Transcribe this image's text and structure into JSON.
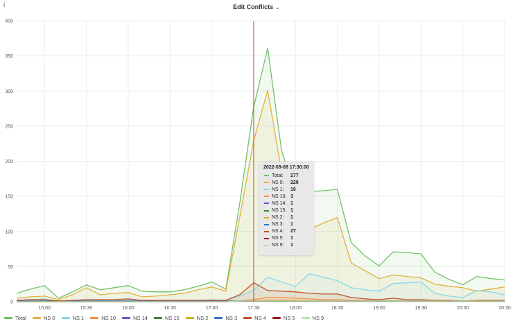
{
  "panel": {
    "title": "Edit Conflicts",
    "info_glyph": "i"
  },
  "chart_data": {
    "type": "line",
    "title": "Edit Conflicts",
    "xlabel": "",
    "ylabel": "",
    "ylim": [
      0,
      400
    ],
    "yticks": [
      "0",
      "50",
      "100",
      "150",
      "200",
      "250",
      "300",
      "350",
      "400"
    ],
    "xticks": [
      "15:00",
      "15:30",
      "16:00",
      "16:30",
      "17:00",
      "17:30",
      "18:00",
      "18:30",
      "19:00",
      "19:30",
      "20:00",
      "20:30"
    ],
    "x": [
      "14:40",
      "14:50",
      "15:00",
      "15:10",
      "15:20",
      "15:30",
      "15:40",
      "15:50",
      "16:00",
      "16:10",
      "16:20",
      "16:30",
      "16:40",
      "16:50",
      "17:00",
      "17:10",
      "17:20",
      "17:30",
      "17:40",
      "17:50",
      "18:00",
      "18:10",
      "18:20",
      "18:30",
      "18:40",
      "18:50",
      "19:00",
      "19:10",
      "19:20",
      "19:30",
      "19:40",
      "19:50",
      "20:00",
      "20:10",
      "20:20",
      "20:30"
    ],
    "grid": true,
    "legend_position": "bottom",
    "series": [
      {
        "name": "Total",
        "color": "#73bf69",
        "values": [
          12,
          18,
          23,
          5,
          14,
          24,
          17,
          20,
          23,
          15,
          14,
          14,
          17,
          22,
          28,
          18,
          140,
          277,
          361,
          215,
          155,
          157,
          158,
          160,
          84,
          65,
          51,
          71,
          70,
          68,
          42,
          32,
          24,
          36,
          33,
          31
        ]
      },
      {
        "name": "NS 0",
        "color": "#e0b23c",
        "values": [
          5,
          7,
          8,
          3,
          10,
          20,
          10,
          12,
          13,
          7,
          8,
          10,
          12,
          17,
          21,
          15,
          120,
          229,
          301,
          185,
          125,
          103,
          112,
          120,
          55,
          44,
          33,
          38,
          36,
          34,
          25,
          22,
          20,
          15,
          18,
          21
        ]
      },
      {
        "name": "NS 1",
        "color": "#8ad8e8",
        "values": [
          2,
          3,
          4,
          1,
          2,
          3,
          2,
          3,
          3,
          2,
          2,
          2,
          2,
          2,
          3,
          2,
          8,
          16,
          35,
          28,
          22,
          40,
          35,
          30,
          20,
          17,
          15,
          26,
          27,
          28,
          12,
          8,
          6,
          16,
          14,
          10
        ]
      },
      {
        "name": "NS 10",
        "color": "#ff8c45",
        "values": [
          0,
          0,
          0,
          0,
          0,
          0,
          0,
          0,
          0,
          0,
          0,
          0,
          0,
          0,
          0,
          0,
          1,
          3,
          6,
          6,
          5,
          4,
          3,
          3,
          2,
          2,
          1,
          1,
          1,
          1,
          1,
          1,
          1,
          1,
          1,
          1
        ]
      },
      {
        "name": "NS 14",
        "color": "#5b5fbf",
        "values": [
          0,
          0,
          0,
          0,
          0,
          0,
          0,
          0,
          0,
          0,
          0,
          0,
          0,
          0,
          0,
          0,
          1,
          1,
          1,
          1,
          1,
          1,
          1,
          1,
          1,
          1,
          1,
          1,
          1,
          1,
          1,
          1,
          1,
          1,
          1,
          1
        ]
      },
      {
        "name": "NS 15",
        "color": "#37872d",
        "values": [
          1,
          1,
          1,
          1,
          1,
          1,
          1,
          1,
          1,
          1,
          1,
          1,
          1,
          1,
          1,
          1,
          1,
          1,
          1,
          1,
          1,
          1,
          1,
          1,
          1,
          1,
          1,
          1,
          1,
          1,
          1,
          1,
          1,
          1,
          1,
          1
        ]
      },
      {
        "name": "NS 2",
        "color": "#d8ac2c",
        "values": [
          1,
          1,
          1,
          1,
          1,
          1,
          1,
          1,
          1,
          1,
          1,
          1,
          1,
          1,
          1,
          1,
          1,
          1,
          2,
          2,
          2,
          1,
          1,
          1,
          1,
          1,
          1,
          1,
          1,
          1,
          1,
          1,
          1,
          1,
          1,
          1
        ]
      },
      {
        "name": "NS 3",
        "color": "#3d71c4",
        "values": [
          1,
          1,
          1,
          1,
          1,
          1,
          1,
          1,
          1,
          1,
          1,
          1,
          1,
          1,
          1,
          1,
          1,
          1,
          1,
          1,
          1,
          1,
          1,
          1,
          1,
          1,
          1,
          1,
          1,
          1,
          1,
          1,
          1,
          1,
          1,
          1
        ]
      },
      {
        "name": "NS 4",
        "color": "#c4512a",
        "values": [
          2,
          3,
          3,
          1,
          2,
          3,
          3,
          3,
          4,
          2,
          2,
          2,
          2,
          2,
          2,
          2,
          10,
          27,
          16,
          15,
          14,
          12,
          11,
          11,
          6,
          4,
          3,
          5,
          3,
          3,
          2,
          2,
          1,
          2,
          2,
          2
        ]
      },
      {
        "name": "NS 5",
        "color": "#9e1b1b",
        "values": [
          0,
          0,
          0,
          0,
          0,
          0,
          0,
          0,
          0,
          0,
          0,
          0,
          0,
          0,
          0,
          0,
          1,
          1,
          1,
          1,
          1,
          1,
          1,
          1,
          1,
          1,
          1,
          1,
          1,
          1,
          1,
          1,
          1,
          1,
          1,
          1
        ]
      },
      {
        "name": "NS 9",
        "color": "#b7e5a4",
        "values": [
          0,
          0,
          0,
          0,
          0,
          0,
          0,
          0,
          0,
          0,
          0,
          0,
          0,
          0,
          0,
          0,
          1,
          1,
          1,
          1,
          1,
          1,
          1,
          1,
          1,
          1,
          1,
          1,
          1,
          1,
          1,
          1,
          1,
          1,
          1,
          1
        ]
      }
    ],
    "cursor_x": "17:30",
    "tooltip": {
      "time": "2022-09-08 17:30:00",
      "rows": [
        {
          "label": "Total:",
          "value": "277",
          "color": "#73bf69"
        },
        {
          "label": "NS 0:",
          "value": "229",
          "color": "#e0b23c"
        },
        {
          "label": "NS 1:",
          "value": "16",
          "color": "#8ad8e8"
        },
        {
          "label": "NS 10:",
          "value": "3",
          "color": "#ff8c45"
        },
        {
          "label": "NS 14:",
          "value": "1",
          "color": "#5b5fbf"
        },
        {
          "label": "NS 15:",
          "value": "1",
          "color": "#37872d"
        },
        {
          "label": "NS 2:",
          "value": "1",
          "color": "#d8ac2c"
        },
        {
          "label": "NS 3:",
          "value": "1",
          "color": "#3d71c4"
        },
        {
          "label": "NS 4:",
          "value": "27",
          "color": "#c4512a"
        },
        {
          "label": "NS 5:",
          "value": "1",
          "color": "#9e1b1b"
        },
        {
          "label": "NS 9:",
          "value": "1",
          "color": "#b7e5a4"
        }
      ]
    }
  }
}
